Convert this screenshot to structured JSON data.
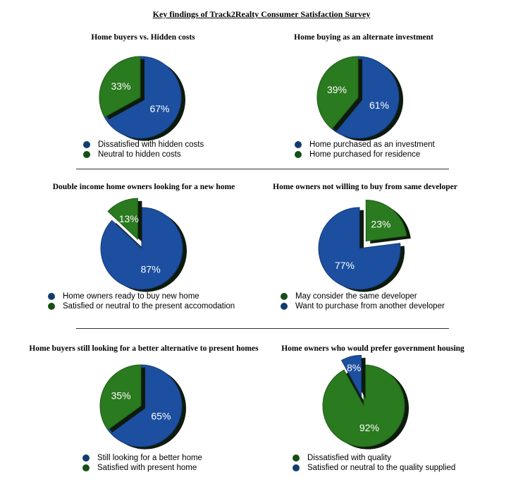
{
  "page_title": "Key findings of Track2Realty Consumer Satisfaction Survey",
  "colors": {
    "blue": "#1c4fa0",
    "green": "#2a7a1f",
    "blue_dot": "#123c6e",
    "green_dot": "#174f15"
  },
  "chart_data": [
    {
      "type": "pie",
      "title": "Home buyers vs. Hidden costs",
      "slices": [
        {
          "label": "Dissatisfied with hidden costs",
          "value": 67,
          "text": "67%",
          "color": "blue"
        },
        {
          "label": "Neutral to hidden costs",
          "value": 33,
          "text": "33%",
          "color": "green"
        }
      ]
    },
    {
      "type": "pie",
      "title": "Home buying as an alternate investment",
      "slices": [
        {
          "label": "Home purchased as an investment",
          "value": 61,
          "text": "61%",
          "color": "blue"
        },
        {
          "label": "Home purchased for residence",
          "value": 39,
          "text": "39%",
          "color": "green"
        }
      ]
    },
    {
      "type": "pie",
      "title": "Double income home owners looking for a new home",
      "slices": [
        {
          "label": "Home owners ready to buy new home",
          "value": 87,
          "text": "87%",
          "color": "blue"
        },
        {
          "label": "Satisfied or neutral to the present accomodation",
          "value": 13,
          "text": "13%",
          "color": "green",
          "exploded": true
        }
      ]
    },
    {
      "type": "pie",
      "title": "Home owners not willing to buy from same developer",
      "slices": [
        {
          "label": "May consider the same developer",
          "value": 23,
          "text": "23%",
          "color": "green",
          "exploded": true
        },
        {
          "label": "Want to purchase from another developer",
          "value": 77,
          "text": "77%",
          "color": "blue"
        }
      ]
    },
    {
      "type": "pie",
      "title": "Home buyers still looking for a better alternative to present homes",
      "slices": [
        {
          "label": "Still looking for a better home",
          "value": 65,
          "text": "65%",
          "color": "blue"
        },
        {
          "label": "Satisfied with present home",
          "value": 35,
          "text": "35%",
          "color": "green"
        }
      ]
    },
    {
      "type": "pie",
      "title": "Home owners who would prefer government housing",
      "slices": [
        {
          "label": "Dissatisfied with quality",
          "value": 92,
          "text": "92%",
          "color": "green"
        },
        {
          "label": "Satisfied or neutral to the quality supplied",
          "value": 8,
          "text": "8%",
          "color": "blue",
          "exploded": true
        }
      ]
    }
  ]
}
